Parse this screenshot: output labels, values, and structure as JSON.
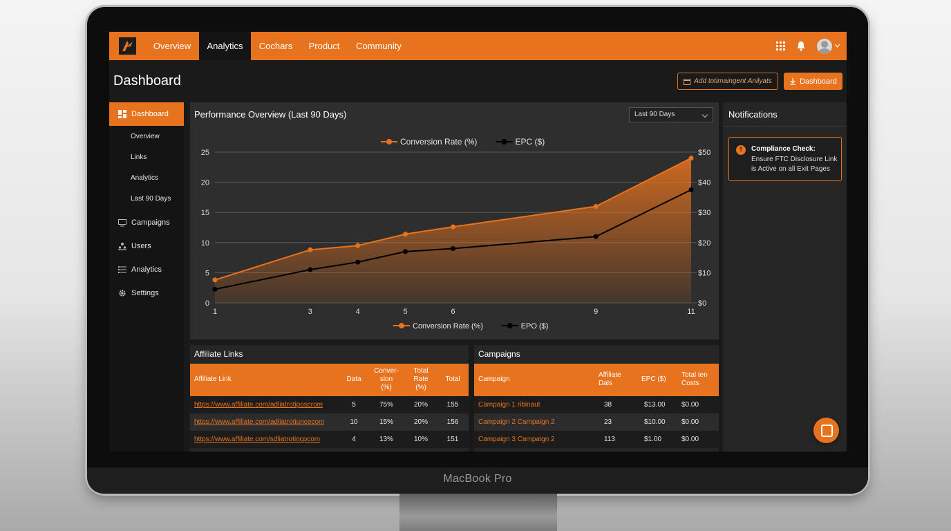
{
  "device": {
    "label": "MacBook Pro"
  },
  "nav": {
    "tabs": [
      {
        "label": "Overview"
      },
      {
        "label": "Analytics"
      },
      {
        "label": "Cochars"
      },
      {
        "label": "Product"
      },
      {
        "label": "Community"
      }
    ],
    "active_tab": "Analytics",
    "icons": [
      "grid-icon",
      "bell-icon",
      "avatar"
    ]
  },
  "page": {
    "title": "Dashboard"
  },
  "actions": {
    "primary_outline_label": "Add totimaingent Anilyats",
    "primary_fill_label": "Dashboard"
  },
  "sidebar": {
    "active": {
      "label": "Dashboard"
    },
    "subitems": [
      {
        "label": "Overview"
      },
      {
        "label": "Links"
      },
      {
        "label": "Analytics"
      },
      {
        "label": "Last 90 Days"
      }
    ],
    "items": [
      {
        "label": "Campaigns",
        "icon": "monitor-icon"
      },
      {
        "label": "Users",
        "icon": "users-icon"
      },
      {
        "label": "Analytics",
        "icon": "list-icon"
      },
      {
        "label": "Settings",
        "icon": "gear-icon"
      }
    ]
  },
  "performance": {
    "title": "Performance Overview (Last 90 Days)",
    "range_select": "Last 90 Days"
  },
  "chart_data": {
    "type": "line",
    "title": "",
    "x": [
      1,
      3,
      4,
      5,
      6,
      9,
      11
    ],
    "series": [
      {
        "name": "Conversion Rate (%)",
        "axis": "left",
        "color": "#e8731f",
        "fill": true,
        "values": [
          3.8,
          8.8,
          9.5,
          11.4,
          12.6,
          16.0,
          24.0
        ]
      },
      {
        "name": "EPC ($)",
        "axis": "right",
        "color": "#000000",
        "values": [
          4.5,
          11,
          13.5,
          17,
          18,
          22,
          37.5
        ]
      }
    ],
    "legend_top": [
      "Conversion Rate (%)",
      "EPC ($)"
    ],
    "legend_bottom": [
      "Conversion Rate (%)",
      "EPO ($)"
    ],
    "y_left": {
      "ticks": [
        "0",
        "5",
        "10",
        "15",
        "20",
        "25"
      ],
      "range": [
        0,
        25
      ]
    },
    "y_right": {
      "ticks": [
        "$0",
        "$10",
        "$20",
        "$30",
        "$40",
        "$50"
      ],
      "range": [
        0,
        50
      ]
    },
    "x_ticks": [
      "1",
      "3",
      "4",
      "5",
      "6",
      "9",
      "11"
    ],
    "grid": true,
    "legend": "top-center and bottom-center"
  },
  "notifications": {
    "title": "Notifications",
    "items": [
      {
        "heading": "Compliance Check:",
        "body": "Ensure FTC Disclosure Link is Active on all Exit Pages"
      }
    ]
  },
  "affiliate_links": {
    "title": "Affiliate Links",
    "columns": [
      "Affiliate Link",
      "Data",
      "Conver-\nsion\n(%)",
      "Total\nRate\n(%)",
      "Total"
    ],
    "rows": [
      [
        "https://www.affiliate.com/adliatrotiposcrom",
        "5",
        "75%",
        "20%",
        "155"
      ],
      [
        "https://www.affiliate.com/adliatrotiuncecom",
        "10",
        "15%",
        "20%",
        "156"
      ],
      [
        "https://www.affiliate.com/sdliatrotiocpcom",
        "4",
        "13%",
        "10%",
        "151"
      ]
    ]
  },
  "campaigns": {
    "title": "Campaigns",
    "columns": [
      "Campaign",
      "Affiliate\nDals",
      "EPC ($)",
      "Total ten\nCosts"
    ],
    "rows": [
      [
        "Campaign 1 ribinaut",
        "38",
        "$13.00",
        "$0.00"
      ],
      [
        "Campaign 2 Campaign 2",
        "23",
        "$10.00",
        "$0.00"
      ],
      [
        "Campaign 3 Campaign 2",
        "113",
        "$1.00",
        "$0.00"
      ]
    ]
  }
}
